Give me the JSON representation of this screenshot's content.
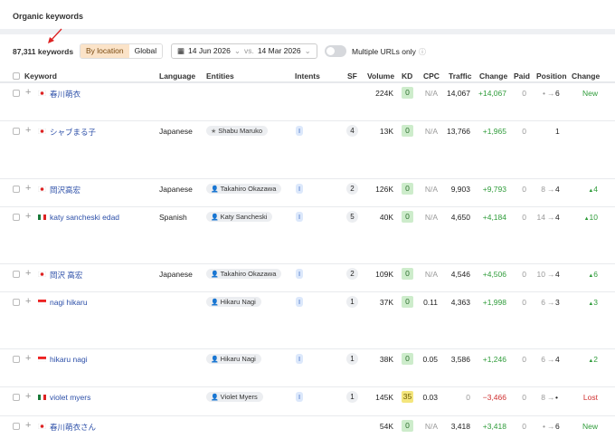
{
  "header": {
    "title": "Organic keywords"
  },
  "toolbar": {
    "count": "87,311 keywords",
    "tabs": [
      "By location",
      "Global"
    ],
    "active_tab": 0,
    "date_from": "14 Jun 2026",
    "vs": "vs.",
    "date_to": "14 Mar 2026",
    "toggle_label": "Multiple URLs only"
  },
  "table": {
    "columns": [
      "Keyword",
      "Language",
      "Entities",
      "Intents",
      "SF",
      "Volume",
      "KD",
      "CPC",
      "Traffic",
      "Change",
      "Paid",
      "Position",
      "Change"
    ],
    "rows": [
      {
        "flag": "jp",
        "keyword": "春川萌衣",
        "language": "",
        "entity": "",
        "entity_icon": "",
        "intent": "",
        "sf": "",
        "volume": "224K",
        "kd": "0",
        "cpc": "N/A",
        "traffic": "14,067",
        "change": "+14,067",
        "paid": "0",
        "pos_from": "•",
        "pos_to": "6",
        "pos_change": "New",
        "dir": "new"
      },
      {
        "flag": "jp",
        "keyword": "シャブまる子",
        "language": "Japanese",
        "entity": "Shabu Maruko",
        "entity_icon": "star",
        "intent": "I",
        "sf": "4",
        "volume": "13K",
        "kd": "0",
        "cpc": "N/A",
        "traffic": "13,766",
        "change": "+1,965",
        "paid": "0",
        "pos_from": "",
        "pos_to": "1",
        "pos_change": "",
        "dir": ""
      },
      {
        "flag": "jp",
        "keyword": "岡沢高宏",
        "language": "Japanese",
        "entity": "Takahiro Okazawa",
        "entity_icon": "person",
        "intent": "I",
        "sf": "2",
        "volume": "126K",
        "kd": "0",
        "cpc": "N/A",
        "traffic": "9,903",
        "change": "+9,793",
        "paid": "0",
        "pos_from": "8",
        "pos_to": "4",
        "pos_change": "4",
        "dir": "up"
      },
      {
        "flag": "mx",
        "keyword": "katy sancheski edad",
        "language": "Spanish",
        "entity": "Katy Sancheski",
        "entity_icon": "person",
        "intent": "I",
        "sf": "5",
        "volume": "40K",
        "kd": "0",
        "cpc": "N/A",
        "traffic": "4,650",
        "change": "+4,184",
        "paid": "0",
        "pos_from": "14",
        "pos_to": "4",
        "pos_change": "10",
        "dir": "up"
      },
      {
        "flag": "jp",
        "keyword": "岡沢 高宏",
        "language": "Japanese",
        "entity": "Takahiro Okazawa",
        "entity_icon": "person",
        "intent": "I",
        "sf": "2",
        "volume": "109K",
        "kd": "0",
        "cpc": "N/A",
        "traffic": "4,546",
        "change": "+4,506",
        "paid": "0",
        "pos_from": "10",
        "pos_to": "4",
        "pos_change": "6",
        "dir": "up"
      },
      {
        "flag": "id",
        "keyword": "nagi hikaru",
        "language": "",
        "entity": "Hikaru Nagi",
        "entity_icon": "person",
        "intent": "I",
        "sf": "1",
        "volume": "37K",
        "kd": "0",
        "cpc": "0.11",
        "traffic": "4,363",
        "change": "+1,998",
        "paid": "0",
        "pos_from": "6",
        "pos_to": "3",
        "pos_change": "3",
        "dir": "up"
      },
      {
        "flag": "id",
        "keyword": "hikaru nagi",
        "language": "",
        "entity": "Hikaru Nagi",
        "entity_icon": "person",
        "intent": "I",
        "sf": "1",
        "volume": "38K",
        "kd": "0",
        "cpc": "0.05",
        "traffic": "3,586",
        "change": "+1,246",
        "paid": "0",
        "pos_from": "6",
        "pos_to": "4",
        "pos_change": "2",
        "dir": "up"
      },
      {
        "flag": "mx",
        "keyword": "violet myers",
        "language": "",
        "entity": "Violet Myers",
        "entity_icon": "person",
        "intent": "I",
        "sf": "1",
        "volume": "145K",
        "kd": "35",
        "cpc": "0.03",
        "traffic": "0",
        "change": "−3,466",
        "paid": "0",
        "pos_from": "8",
        "pos_to": "•",
        "pos_change": "Lost",
        "dir": "lost"
      },
      {
        "flag": "jp",
        "keyword": "春川萌衣さん",
        "language": "",
        "entity": "",
        "entity_icon": "",
        "intent": "",
        "sf": "",
        "volume": "54K",
        "kd": "0",
        "cpc": "N/A",
        "traffic": "3,418",
        "change": "+3,418",
        "paid": "0",
        "pos_from": "•",
        "pos_to": "6",
        "pos_change": "New",
        "dir": "new"
      }
    ]
  }
}
